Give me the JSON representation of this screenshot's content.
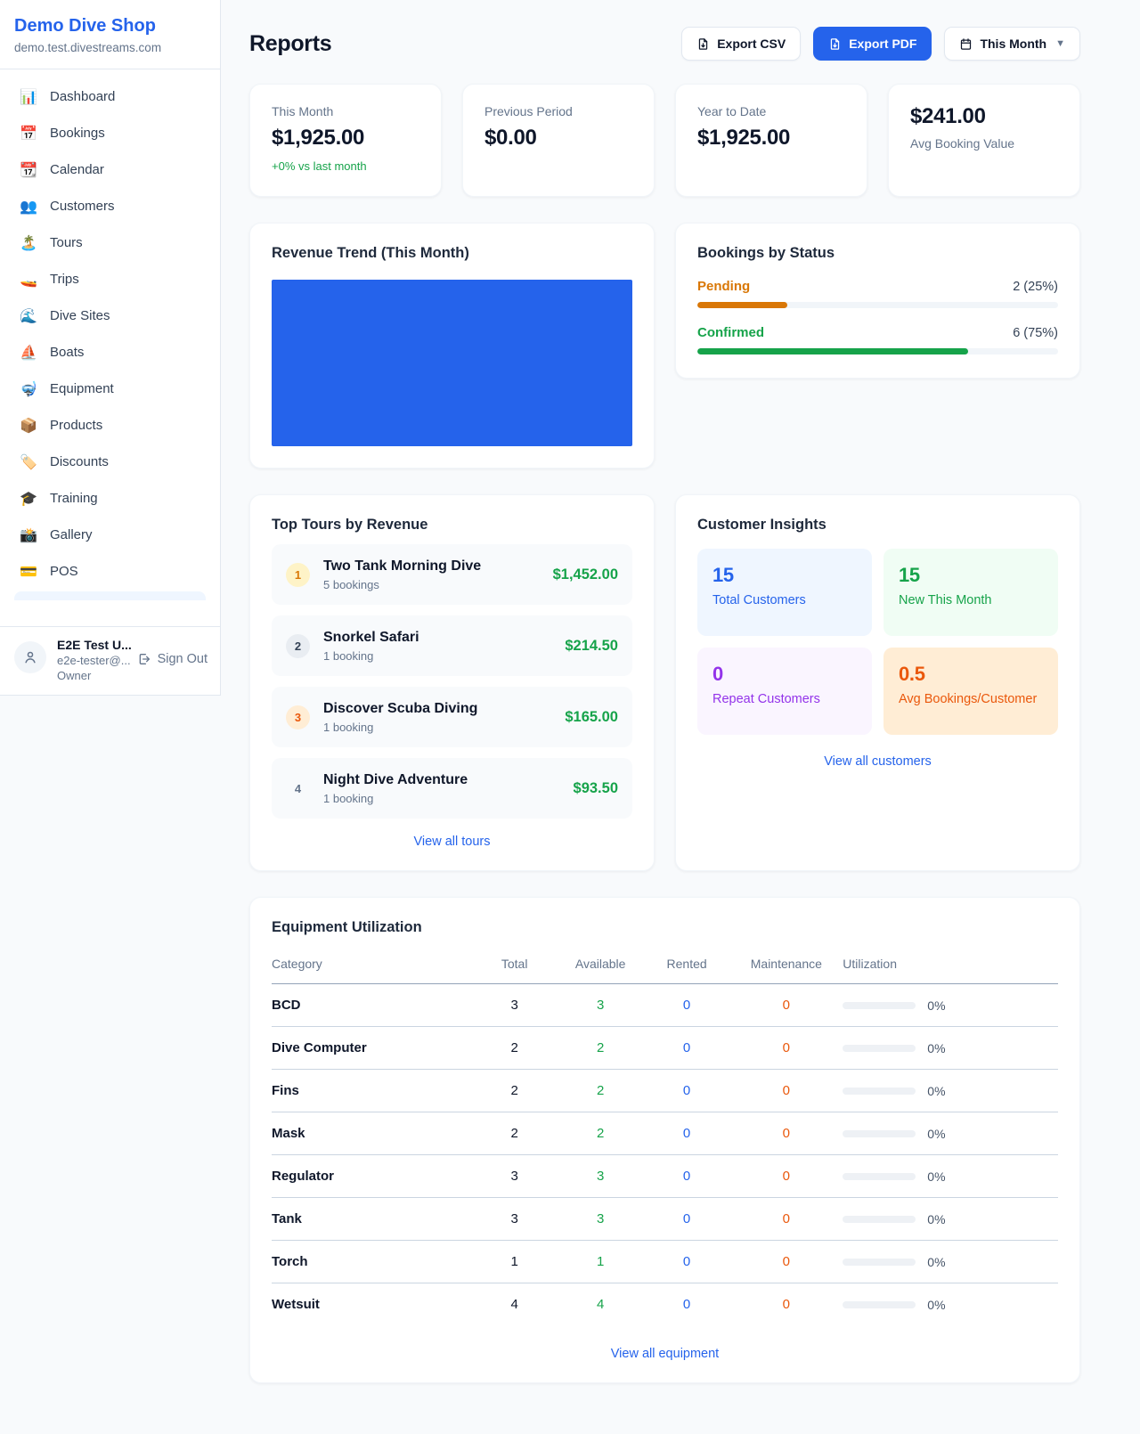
{
  "colors": {
    "accent_blue": "#2563eb",
    "green": "#16a34a",
    "amber": "#d97706",
    "orange": "#ea580c",
    "purple": "#9333ea",
    "page_bg": "#f8fafc"
  },
  "sidebar": {
    "shop_name": "Demo Dive Shop",
    "domain": "demo.test.divestreams.com",
    "nav": [
      {
        "label": "Dashboard",
        "icon": "📊",
        "icon_name": "bar-chart-icon"
      },
      {
        "label": "Bookings",
        "icon": "📅",
        "icon_name": "calendar-date-icon"
      },
      {
        "label": "Calendar",
        "icon": "📆",
        "icon_name": "tear-off-calendar-icon"
      },
      {
        "label": "Customers",
        "icon": "👥",
        "icon_name": "people-icon"
      },
      {
        "label": "Tours",
        "icon": "🏝️",
        "icon_name": "island-icon"
      },
      {
        "label": "Trips",
        "icon": "🚤",
        "icon_name": "speedboat-icon"
      },
      {
        "label": "Dive Sites",
        "icon": "🌊",
        "icon_name": "wave-icon"
      },
      {
        "label": "Boats",
        "icon": "⛵",
        "icon_name": "sailboat-icon"
      },
      {
        "label": "Equipment",
        "icon": "🤿",
        "icon_name": "diving-mask-icon"
      },
      {
        "label": "Products",
        "icon": "📦",
        "icon_name": "package-icon"
      },
      {
        "label": "Discounts",
        "icon": "🏷️",
        "icon_name": "tag-icon"
      },
      {
        "label": "Training",
        "icon": "🎓",
        "icon_name": "graduation-cap-icon"
      },
      {
        "label": "Gallery",
        "icon": "📸",
        "icon_name": "camera-icon"
      },
      {
        "label": "POS",
        "icon": "💳",
        "icon_name": "credit-card-icon"
      }
    ],
    "user": {
      "name": "E2E Test U...",
      "email": "e2e-tester@...",
      "role": "Owner",
      "sign_out_label": "Sign Out"
    }
  },
  "header": {
    "title": "Reports",
    "export_csv_label": "Export CSV",
    "export_pdf_label": "Export PDF",
    "period_label": "This Month"
  },
  "stats": [
    {
      "label": "This Month",
      "value": "$1,925.00",
      "note": "+0% vs last month"
    },
    {
      "label": "Previous Period",
      "value": "$0.00"
    },
    {
      "label": "Year to Date",
      "value": "$1,925.00"
    },
    {
      "label": "Avg Booking Value",
      "value": "$241.00"
    }
  ],
  "revenue_trend": {
    "title": "Revenue Trend (This Month)",
    "bar_color": "#2563eb",
    "chart_data": {
      "type": "bar",
      "categories": [
        "This Month"
      ],
      "values": [
        1925
      ],
      "title": "Revenue Trend (This Month)",
      "xlabel": "",
      "ylabel": "",
      "note": "single full-width solid bar, no axes or labels visible"
    }
  },
  "bookings_by_status": {
    "title": "Bookings by Status",
    "statuses": [
      {
        "label": "Pending",
        "count_text": "2 (25%)",
        "percent": 25,
        "color": "#d97706"
      },
      {
        "label": "Confirmed",
        "count_text": "6 (75%)",
        "percent": 75,
        "color": "#16a34a"
      }
    ]
  },
  "top_tours": {
    "title": "Top Tours by Revenue",
    "view_all_label": "View all tours",
    "tours": [
      {
        "rank": "1",
        "name": "Two Tank Morning Dive",
        "bookings": "5 bookings",
        "revenue": "$1,452.00"
      },
      {
        "rank": "2",
        "name": "Snorkel Safari",
        "bookings": "1 booking",
        "revenue": "$214.50"
      },
      {
        "rank": "3",
        "name": "Discover Scuba Diving",
        "bookings": "1 booking",
        "revenue": "$165.00"
      },
      {
        "rank": "4",
        "name": "Night Dive Adventure",
        "bookings": "1 booking",
        "revenue": "$93.50"
      }
    ]
  },
  "customer_insights": {
    "title": "Customer Insights",
    "view_all_label": "View all customers",
    "tiles": [
      {
        "value": "15",
        "label": "Total Customers",
        "color": "#2563eb",
        "bg": "#eff6ff"
      },
      {
        "value": "15",
        "label": "New This Month",
        "color": "#16a34a",
        "bg": "#f0fdf4"
      },
      {
        "value": "0",
        "label": "Repeat Customers",
        "color": "#9333ea",
        "bg": "#faf5ff"
      },
      {
        "value": "0.5",
        "label": "Avg Bookings/Customer",
        "color": "#ea580c",
        "bg": "#ffedd5"
      }
    ]
  },
  "equipment": {
    "title": "Equipment Utilization",
    "view_all_label": "View all equipment",
    "columns": [
      "Category",
      "Total",
      "Available",
      "Rented",
      "Maintenance",
      "Utilization"
    ],
    "rows": [
      {
        "category": "BCD",
        "total": "3",
        "available": "3",
        "rented": "0",
        "maintenance": "0",
        "utilization_pct": 0,
        "utilization_label": "0%"
      },
      {
        "category": "Dive Computer",
        "total": "2",
        "available": "2",
        "rented": "0",
        "maintenance": "0",
        "utilization_pct": 0,
        "utilization_label": "0%"
      },
      {
        "category": "Fins",
        "total": "2",
        "available": "2",
        "rented": "0",
        "maintenance": "0",
        "utilization_pct": 0,
        "utilization_label": "0%"
      },
      {
        "category": "Mask",
        "total": "2",
        "available": "2",
        "rented": "0",
        "maintenance": "0",
        "utilization_pct": 0,
        "utilization_label": "0%"
      },
      {
        "category": "Regulator",
        "total": "3",
        "available": "3",
        "rented": "0",
        "maintenance": "0",
        "utilization_pct": 0,
        "utilization_label": "0%"
      },
      {
        "category": "Tank",
        "total": "3",
        "available": "3",
        "rented": "0",
        "maintenance": "0",
        "utilization_pct": 0,
        "utilization_label": "0%"
      },
      {
        "category": "Torch",
        "total": "1",
        "available": "1",
        "rented": "0",
        "maintenance": "0",
        "utilization_pct": 0,
        "utilization_label": "0%"
      },
      {
        "category": "Wetsuit",
        "total": "4",
        "available": "4",
        "rented": "0",
        "maintenance": "0",
        "utilization_pct": 0,
        "utilization_label": "0%"
      }
    ]
  }
}
